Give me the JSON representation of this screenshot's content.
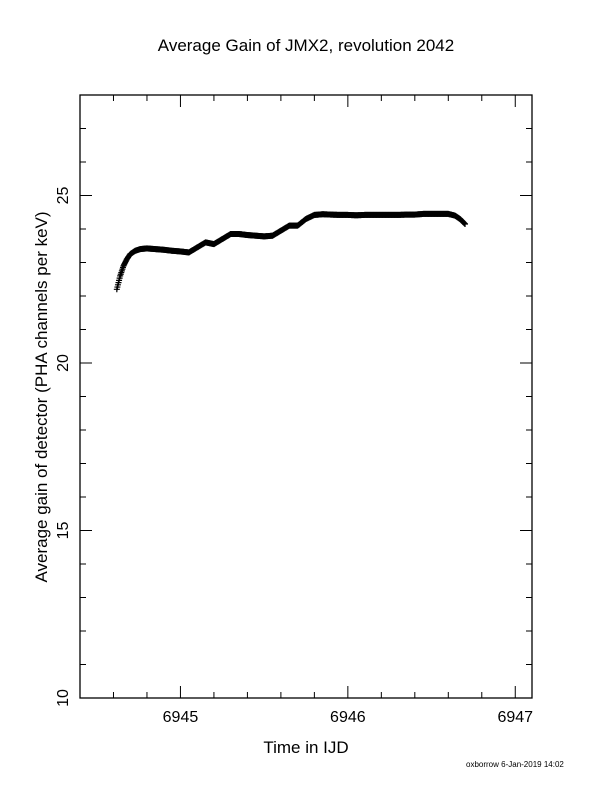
{
  "chart_data": {
    "type": "scatter",
    "title": "Average Gain of JMX2, revolution 2042",
    "xlabel": "Time in IJD",
    "ylabel": "Average gain of detector (PHA channels per keV)",
    "xlim": [
      6944.4,
      6947.1
    ],
    "ylim": [
      10,
      28
    ],
    "xticks": [
      6945,
      6946,
      6947
    ],
    "yticks": [
      10,
      15,
      20,
      25
    ],
    "xtick_labels": [
      "6945",
      "6946",
      "6947"
    ],
    "ytick_labels": [
      "10",
      "15",
      "20",
      "25"
    ],
    "grid": false,
    "marker": "plus",
    "series": [
      {
        "x": [
          6944.62,
          6944.64,
          6944.66,
          6944.68,
          6944.7,
          6944.73,
          6944.76,
          6944.8,
          6944.85,
          6944.9,
          6944.95,
          6945.0,
          6945.05,
          6945.1,
          6945.15,
          6945.2,
          6945.25,
          6945.3,
          6945.35,
          6945.4,
          6945.45,
          6945.5,
          6945.55,
          6945.6,
          6945.65,
          6945.7,
          6945.75,
          6945.8,
          6945.85,
          6945.9,
          6945.95,
          6946.0,
          6946.05,
          6946.1,
          6946.15,
          6946.2,
          6946.25,
          6946.3,
          6946.35,
          6946.4,
          6946.45,
          6946.5,
          6946.55,
          6946.6,
          6946.64,
          6946.67,
          6946.7
        ],
        "y": [
          22.2,
          22.6,
          22.9,
          23.1,
          23.25,
          23.35,
          23.4,
          23.42,
          23.4,
          23.38,
          23.35,
          23.33,
          23.3,
          23.45,
          23.6,
          23.55,
          23.7,
          23.85,
          23.85,
          23.82,
          23.8,
          23.78,
          23.8,
          23.95,
          24.1,
          24.1,
          24.3,
          24.42,
          24.44,
          24.43,
          24.42,
          24.42,
          24.41,
          24.42,
          24.42,
          24.42,
          24.42,
          24.42,
          24.43,
          24.43,
          24.45,
          24.45,
          24.45,
          24.45,
          24.4,
          24.3,
          24.15
        ]
      }
    ]
  },
  "footer_text": "oxborrow  6-Jan-2019 14:02"
}
